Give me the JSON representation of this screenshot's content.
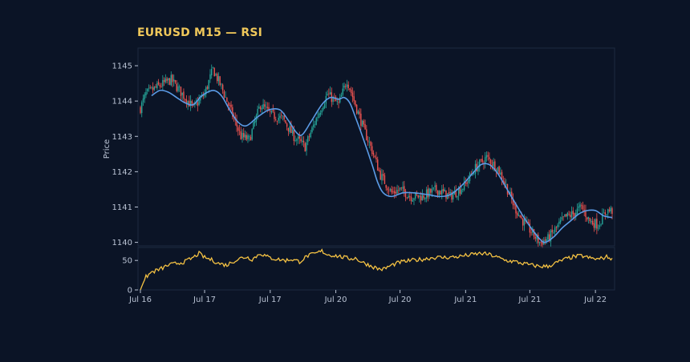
{
  "chart_data": {
    "type": "candlestick",
    "title": "EURUSD M15 — RSI",
    "colors": {
      "background": "#0b1426",
      "title": "#f0c85a",
      "up": "#26a69a",
      "down": "#ef5350",
      "moving_average": "#5b9be6",
      "rsi": "#f5c243",
      "grid": "#1e2a40",
      "text": "#b9c2d3"
    },
    "price_panel": {
      "ylabel": "Price",
      "ylim": [
        1139.9,
        1145.5
      ],
      "yticks": [
        1140,
        1141,
        1142,
        1143,
        1144,
        1145
      ],
      "close_keypoints": [
        [
          0,
          1143.8
        ],
        [
          4,
          1144.2
        ],
        [
          12,
          1144.4
        ],
        [
          22,
          1144.6
        ],
        [
          30,
          1144.2
        ],
        [
          38,
          1143.8
        ],
        [
          46,
          1144.2
        ],
        [
          52,
          1144.9
        ],
        [
          58,
          1144.4
        ],
        [
          66,
          1143.6
        ],
        [
          72,
          1143.0
        ],
        [
          78,
          1142.9
        ],
        [
          86,
          1143.9
        ],
        [
          94,
          1143.6
        ],
        [
          102,
          1143.5
        ],
        [
          110,
          1143.0
        ],
        [
          118,
          1142.7
        ],
        [
          126,
          1143.5
        ],
        [
          134,
          1144.2
        ],
        [
          142,
          1143.9
        ],
        [
          148,
          1144.6
        ],
        [
          154,
          1143.9
        ],
        [
          160,
          1143.2
        ],
        [
          166,
          1142.6
        ],
        [
          172,
          1141.9
        ],
        [
          180,
          1141.4
        ],
        [
          186,
          1141.5
        ],
        [
          194,
          1141.3
        ],
        [
          202,
          1141.3
        ],
        [
          212,
          1141.5
        ],
        [
          222,
          1141.3
        ],
        [
          232,
          1141.6
        ],
        [
          240,
          1142.1
        ],
        [
          248,
          1142.4
        ],
        [
          256,
          1142.1
        ],
        [
          262,
          1141.6
        ],
        [
          268,
          1141.0
        ],
        [
          274,
          1140.6
        ],
        [
          280,
          1140.3
        ],
        [
          286,
          1140.0
        ],
        [
          292,
          1140.1
        ],
        [
          298,
          1140.4
        ],
        [
          304,
          1140.7
        ],
        [
          310,
          1140.8
        ],
        [
          316,
          1141.0
        ],
        [
          322,
          1140.6
        ],
        [
          328,
          1140.5
        ],
        [
          334,
          1140.9
        ],
        [
          338,
          1140.9
        ]
      ],
      "moving_average": [
        [
          8,
          1144.15
        ],
        [
          14,
          1144.3
        ],
        [
          20,
          1144.25
        ],
        [
          26,
          1144.1
        ],
        [
          32,
          1143.95
        ],
        [
          38,
          1143.9
        ],
        [
          44,
          1144.15
        ],
        [
          52,
          1144.3
        ],
        [
          58,
          1144.15
        ],
        [
          64,
          1143.75
        ],
        [
          70,
          1143.4
        ],
        [
          76,
          1143.3
        ],
        [
          84,
          1143.55
        ],
        [
          92,
          1143.75
        ],
        [
          100,
          1143.75
        ],
        [
          106,
          1143.45
        ],
        [
          112,
          1143.1
        ],
        [
          116,
          1143.05
        ],
        [
          122,
          1143.4
        ],
        [
          130,
          1143.9
        ],
        [
          136,
          1144.1
        ],
        [
          142,
          1144.05
        ],
        [
          146,
          1144.1
        ],
        [
          150,
          1143.95
        ],
        [
          154,
          1143.55
        ],
        [
          160,
          1142.9
        ],
        [
          166,
          1142.2
        ],
        [
          170,
          1141.7
        ],
        [
          174,
          1141.4
        ],
        [
          180,
          1141.3
        ],
        [
          188,
          1141.4
        ],
        [
          196,
          1141.4
        ],
        [
          206,
          1141.35
        ],
        [
          214,
          1141.3
        ],
        [
          222,
          1141.35
        ],
        [
          230,
          1141.6
        ],
        [
          238,
          1141.95
        ],
        [
          244,
          1142.2
        ],
        [
          250,
          1142.2
        ],
        [
          256,
          1141.95
        ],
        [
          262,
          1141.55
        ],
        [
          268,
          1141.15
        ],
        [
          274,
          1140.75
        ],
        [
          280,
          1140.4
        ],
        [
          286,
          1140.1
        ],
        [
          290,
          1140.0
        ],
        [
          296,
          1140.15
        ],
        [
          302,
          1140.4
        ],
        [
          308,
          1140.6
        ],
        [
          314,
          1140.8
        ],
        [
          320,
          1140.9
        ],
        [
          326,
          1140.9
        ],
        [
          332,
          1140.75
        ],
        [
          338,
          1140.7
        ]
      ]
    },
    "rsi_panel": {
      "ylim": [
        0,
        72
      ],
      "yticks": [
        0,
        50
      ],
      "keypoints": [
        [
          0,
          0
        ],
        [
          2,
          12
        ],
        [
          4,
          22
        ],
        [
          8,
          30
        ],
        [
          14,
          35
        ],
        [
          20,
          42
        ],
        [
          26,
          45
        ],
        [
          32,
          48
        ],
        [
          38,
          55
        ],
        [
          42,
          62
        ],
        [
          46,
          55
        ],
        [
          52,
          50
        ],
        [
          56,
          45
        ],
        [
          62,
          42
        ],
        [
          66,
          48
        ],
        [
          72,
          54
        ],
        [
          76,
          56
        ],
        [
          80,
          52
        ],
        [
          86,
          62
        ],
        [
          92,
          55
        ],
        [
          98,
          52
        ],
        [
          104,
          50
        ],
        [
          108,
          52
        ],
        [
          114,
          48
        ],
        [
          120,
          58
        ],
        [
          126,
          62
        ],
        [
          130,
          66
        ],
        [
          134,
          60
        ],
        [
          140,
          58
        ],
        [
          146,
          55
        ],
        [
          150,
          53
        ],
        [
          154,
          54
        ],
        [
          158,
          48
        ],
        [
          162,
          44
        ],
        [
          166,
          40
        ],
        [
          170,
          36
        ],
        [
          174,
          35
        ],
        [
          180,
          42
        ],
        [
          186,
          47
        ],
        [
          194,
          50
        ],
        [
          202,
          52
        ],
        [
          210,
          55
        ],
        [
          218,
          55
        ],
        [
          226,
          56
        ],
        [
          232,
          58
        ],
        [
          238,
          60
        ],
        [
          244,
          62
        ],
        [
          250,
          60
        ],
        [
          256,
          55
        ],
        [
          262,
          50
        ],
        [
          268,
          48
        ],
        [
          274,
          45
        ],
        [
          280,
          42
        ],
        [
          286,
          40
        ],
        [
          292,
          40
        ],
        [
          298,
          46
        ],
        [
          304,
          52
        ],
        [
          310,
          56
        ],
        [
          316,
          58
        ],
        [
          322,
          54
        ],
        [
          328,
          52
        ],
        [
          334,
          56
        ],
        [
          338,
          53
        ]
      ]
    },
    "x_axis": {
      "ticks": [
        {
          "bar": 0,
          "label": "Jul 16"
        },
        {
          "bar": 46,
          "label": "Jul 17"
        },
        {
          "bar": 93,
          "label": "Jul 17"
        },
        {
          "bar": 140,
          "label": "Jul 20"
        },
        {
          "bar": 186,
          "label": "Jul 20"
        },
        {
          "bar": 233,
          "label": "Jul 21"
        },
        {
          "bar": 279,
          "label": "Jul 21"
        },
        {
          "bar": 326,
          "label": "Jul 22"
        }
      ]
    },
    "bars": 339
  }
}
